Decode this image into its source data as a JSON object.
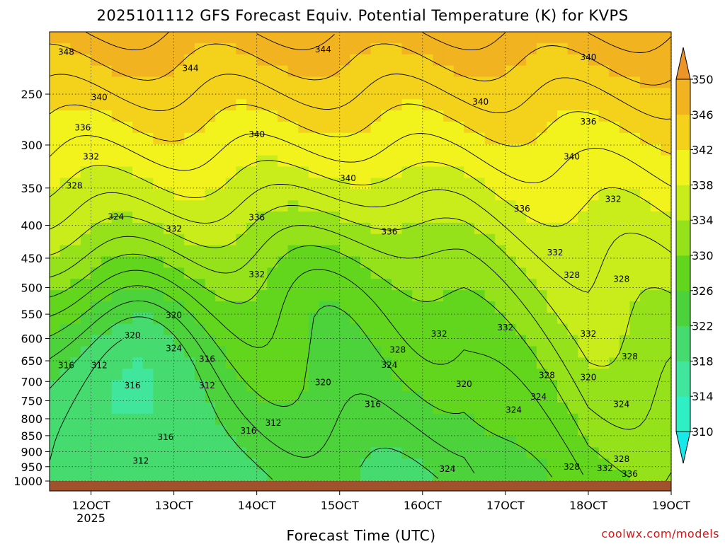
{
  "title": "2025101112 GFS Forecast Equiv. Potential Temperature (K) for KVPS",
  "credit": "coolwx.com/models",
  "chart_data": {
    "type": "heatmap",
    "title": "2025101112 GFS Forecast Equiv. Potential Temperature (K) for KVPS",
    "xlabel": "Forecast Time (UTC)",
    "ylabel": "",
    "x_ticks": [
      "12OCT",
      "13OCT",
      "14OCT",
      "15OCT",
      "16OCT",
      "17OCT",
      "18OCT",
      "19OCT"
    ],
    "x_tick_values": [
      12,
      13,
      14,
      15,
      16,
      17,
      18,
      19
    ],
    "x_year_label": "2025",
    "x_range": [
      11.5,
      19.0
    ],
    "y_ticks": [
      "250",
      "300",
      "350",
      "400",
      "450",
      "500",
      "550",
      "600",
      "650",
      "700",
      "750",
      "800",
      "850",
      "900",
      "950",
      "1000"
    ],
    "y_tick_values": [
      250,
      300,
      350,
      400,
      450,
      500,
      550,
      600,
      650,
      700,
      750,
      800,
      850,
      900,
      950,
      1000
    ],
    "y_range": [
      200,
      1000
    ],
    "y_scale": "log",
    "y_inverted": true,
    "grid": true,
    "colorbar": {
      "values": [
        310,
        314,
        318,
        322,
        326,
        330,
        334,
        338,
        342,
        346,
        350
      ],
      "labels": [
        "310",
        "314",
        "318",
        "322",
        "326",
        "330",
        "334",
        "338",
        "342",
        "346",
        "350"
      ],
      "colors": [
        "#17e8ea",
        "#2ef0c4",
        "#3fe69b",
        "#45db6f",
        "#4cd23a",
        "#61d61d",
        "#95e21a",
        "#c9ed1a",
        "#f2f21c",
        "#f4d21c",
        "#f2b320",
        "#eb9428"
      ],
      "extend": "both"
    },
    "surface_color": "#a0522d",
    "contour_levels": [
      310,
      312,
      314,
      316,
      318,
      320,
      322,
      324,
      326,
      328,
      330,
      332,
      334,
      336,
      338,
      340,
      342,
      344,
      346,
      348,
      350
    ],
    "contour_labels": [
      {
        "text": "348",
        "x": 11.7,
        "p": 215
      },
      {
        "text": "344",
        "x": 13.2,
        "p": 228
      },
      {
        "text": "344",
        "x": 14.8,
        "p": 213
      },
      {
        "text": "340",
        "x": 18.0,
        "p": 219
      },
      {
        "text": "340",
        "x": 12.1,
        "p": 253
      },
      {
        "text": "340",
        "x": 16.7,
        "p": 257
      },
      {
        "text": "336",
        "x": 11.9,
        "p": 282
      },
      {
        "text": "340",
        "x": 14.0,
        "p": 289
      },
      {
        "text": "336",
        "x": 18.0,
        "p": 276
      },
      {
        "text": "332",
        "x": 12.0,
        "p": 313
      },
      {
        "text": "340",
        "x": 17.8,
        "p": 313
      },
      {
        "text": "340",
        "x": 15.1,
        "p": 338
      },
      {
        "text": "328",
        "x": 11.8,
        "p": 347
      },
      {
        "text": "332",
        "x": 18.3,
        "p": 364
      },
      {
        "text": "324",
        "x": 12.3,
        "p": 388
      },
      {
        "text": "336",
        "x": 14.0,
        "p": 389
      },
      {
        "text": "336",
        "x": 17.2,
        "p": 377
      },
      {
        "text": "332",
        "x": 13.0,
        "p": 405
      },
      {
        "text": "336",
        "x": 15.6,
        "p": 409
      },
      {
        "text": "332",
        "x": 17.6,
        "p": 441
      },
      {
        "text": "332",
        "x": 14.0,
        "p": 477
      },
      {
        "text": "328",
        "x": 17.8,
        "p": 478
      },
      {
        "text": "328",
        "x": 18.4,
        "p": 485
      },
      {
        "text": "320",
        "x": 13.0,
        "p": 552
      },
      {
        "text": "332",
        "x": 16.2,
        "p": 590
      },
      {
        "text": "332",
        "x": 17.0,
        "p": 577
      },
      {
        "text": "332",
        "x": 18.0,
        "p": 590
      },
      {
        "text": "320",
        "x": 12.5,
        "p": 593
      },
      {
        "text": "324",
        "x": 13.0,
        "p": 622
      },
      {
        "text": "328",
        "x": 15.7,
        "p": 625
      },
      {
        "text": "316",
        "x": 13.4,
        "p": 646
      },
      {
        "text": "328",
        "x": 18.5,
        "p": 640
      },
      {
        "text": "316",
        "x": 11.7,
        "p": 661
      },
      {
        "text": "312",
        "x": 12.1,
        "p": 661
      },
      {
        "text": "324",
        "x": 15.6,
        "p": 660
      },
      {
        "text": "328",
        "x": 17.5,
        "p": 685
      },
      {
        "text": "320",
        "x": 18.0,
        "p": 690
      },
      {
        "text": "320",
        "x": 14.8,
        "p": 702
      },
      {
        "text": "320",
        "x": 16.5,
        "p": 707
      },
      {
        "text": "316",
        "x": 12.5,
        "p": 710
      },
      {
        "text": "312",
        "x": 13.4,
        "p": 710
      },
      {
        "text": "324",
        "x": 17.4,
        "p": 740
      },
      {
        "text": "316",
        "x": 15.4,
        "p": 760
      },
      {
        "text": "324",
        "x": 17.1,
        "p": 775
      },
      {
        "text": "324",
        "x": 18.4,
        "p": 760
      },
      {
        "text": "312",
        "x": 14.2,
        "p": 812
      },
      {
        "text": "316",
        "x": 13.9,
        "p": 835
      },
      {
        "text": "316",
        "x": 12.9,
        "p": 855
      },
      {
        "text": "312",
        "x": 12.6,
        "p": 930
      },
      {
        "text": "324",
        "x": 16.3,
        "p": 958
      },
      {
        "text": "328",
        "x": 17.8,
        "p": 950
      },
      {
        "text": "328",
        "x": 18.4,
        "p": 925
      },
      {
        "text": "332",
        "x": 18.2,
        "p": 955
      },
      {
        "text": "336",
        "x": 18.5,
        "p": 975
      }
    ]
  }
}
